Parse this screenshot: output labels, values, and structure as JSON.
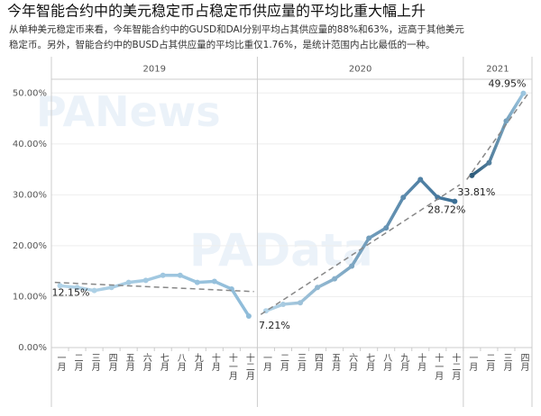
{
  "chart_data": {
    "type": "line",
    "title": "今年智能合约中的美元稳定币占稳定币供应量的平均比重大幅上升",
    "subtitle": [
      "从单种美元稳定币来看，今年智能合约中的GUSD和DAI分别平均占其供应量的88%和63%，远高于其他美元",
      "稳定币。另外，智能合约中的BUSD占其供应量的平均比重仅1.76%，是统计范围内占比最低的一种。"
    ],
    "watermarks": [
      "PANews",
      "PAData"
    ],
    "ylim": [
      0,
      52
    ],
    "yticks": [
      {
        "value": 0,
        "label": "0.00%"
      },
      {
        "value": 10,
        "label": "10.00%"
      },
      {
        "value": 20,
        "label": "20.00%"
      },
      {
        "value": 30,
        "label": "30.00%"
      },
      {
        "value": 40,
        "label": "40.00%"
      },
      {
        "value": 50,
        "label": "50.00%"
      }
    ],
    "grid": true,
    "panels": [
      {
        "name": "2019",
        "color_range": [
          "#b3d4e8",
          "#8fbcd9"
        ],
        "categories": [
          "一月",
          "二月",
          "三月",
          "四月",
          "五月",
          "六月",
          "七月",
          "八月",
          "九月",
          "十月",
          "十一月",
          "十二月"
        ],
        "values": [
          12.15,
          11.8,
          11.2,
          11.8,
          12.8,
          13.2,
          14.2,
          14.2,
          12.8,
          13.0,
          11.5,
          6.2
        ],
        "value_labels": [
          "12.15%",
          null,
          null,
          null,
          null,
          null,
          null,
          null,
          null,
          null,
          null,
          null
        ],
        "trend": [
          12.8,
          11.0
        ]
      },
      {
        "name": "2020",
        "color_range": [
          "#b3d4e8",
          "#3b6f96"
        ],
        "categories": [
          "一月",
          "二月",
          "三月",
          "四月",
          "五月",
          "六月",
          "七月",
          "八月",
          "九月",
          "十月",
          "十一月",
          "十二月"
        ],
        "values": [
          7.21,
          8.5,
          8.8,
          11.8,
          13.5,
          16.0,
          21.5,
          23.5,
          29.5,
          33.0,
          29.5,
          28.72
        ],
        "value_labels": [
          "7.21%",
          null,
          null,
          null,
          null,
          null,
          null,
          null,
          null,
          null,
          null,
          "28.72%"
        ],
        "trend": [
          6.5,
          32.0
        ]
      },
      {
        "name": "2021",
        "color_range": [
          "#2c5a7a",
          "#9cc6e0"
        ],
        "categories": [
          "一月",
          "二月",
          "三月",
          "四月"
        ],
        "values": [
          33.81,
          36.3,
          44.5,
          49.95
        ],
        "value_labels": [
          "33.81%",
          null,
          null,
          "49.95%"
        ],
        "trend": [
          33.0,
          50.0
        ]
      }
    ]
  }
}
